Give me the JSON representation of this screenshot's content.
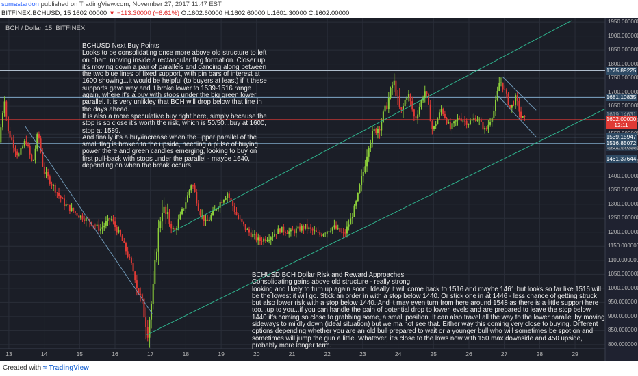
{
  "header": {
    "author": "sumastardon",
    "published_text": "published on TradingView.com, November 27, 2017 11:47 EST",
    "symbol": "BITFINEX:BCHUSD, 15",
    "last": "1602.00000",
    "change": "▼ −113.30000 (−6.61%)",
    "ohlc": "O:1602.60000 H:1602.60000 L:1601.30000 C:1602.00000"
  },
  "chart": {
    "symbol_label": "BCH / Dollar, 15, BITFINEX",
    "colors": {
      "background": "#1b1e27",
      "grid": "#2a2e39",
      "up_candle": "#8ccf3a",
      "down_candle": "#e03a35",
      "trendline": "#2fb48e",
      "channel_line": "#6e96b4",
      "support_line": "#7fa8c8",
      "resistance_line": "#aebdcc",
      "price_line": "#e03a35",
      "price_tag": "#e03a35",
      "level_tag": "#2e4a64"
    },
    "horizontal_levels": [
      {
        "label": "1775.89225",
        "value": 1775.9,
        "style": "resistance"
      },
      {
        "label": "1681.10835",
        "value": 1681.1,
        "style": "support"
      },
      {
        "label": "1539.15947",
        "value": 1539.2,
        "style": "support"
      },
      {
        "label": "1516.85072",
        "value": 1516.9,
        "style": "support"
      },
      {
        "label": "1461.37644",
        "value": 1461.4,
        "style": "support"
      }
    ],
    "current_price_tag": {
      "label": "1602.00000",
      "value": 1602
    },
    "countdown_tag": {
      "label": "12:11",
      "value": 1580
    },
    "partially_hidden_tags": [
      {
        "label": "1619.14631",
        "value": 1619.1
      },
      {
        "label": "1501.87655",
        "value": 1501.9
      }
    ]
  },
  "annotations": {
    "note1": "BCHUSD  Next Buy Points\nLooks to be consolidating once more above old structure to left on chart, moving inside a rectangular flag formation. Closer up, it's moving down a pair of parallels and dancing along between the two blue lines of fixed support, with pin bars of interest at 1600 showing...it would be helpful (to buyers at least) if it these supports gave way and it broke lower to 1539-1516 range again, where it's a buy with stops under the big green lower parallel. It is very unlikley that BCH will drop below that line in the days ahead.\nIt is also a more speculative buy right here, simply because the stop is so close it's worth the risk, which is 50/50...buy at 1600, stop at 1589.\nAnd finally it's a buy/increase when the upper parallel of the small flag is broken to the upside, needing a pulse of buying power there and green candles emerging, looking to buy on first pull-back with stops under the parallel - maybe 1640, depending on when the break occurs.",
    "note2": "BCHUSD   BCH Dollar Risk and Reward Approaches\nConsolidating gains above old structure - really strong\nlooking and likely to turn up again soon. Ideally it will come back to 1516 and maybe 1461 but looks so far like 1516 will be the lowest it will go. Stick an order in with a stop below 1440. Or stick one in at 1446 - less chance of getting struck but also lower risk with a stop below 1440. And it may even turn from here around 1548 as there is a little support here too...up to you...if you can handle the pain of potential drop to lower levels and are prepared to leave the stop below 1440 it's coming so close to grabbing some, a small position. It can also travel all the way  to the lower parallel by moving sideways to mildly down (ideal situation) but we ma not see that. Either way this coming very close to buying. Different options depending whether you are an old bull prepared to wait or a younger bull who will sometimes be spot on and sometimes will jump the gun  a little. Whatever, it's close to the lows now with 150 max downside and 450 upside, probably more longer term."
  },
  "chart_data": {
    "type": "candlestick",
    "title": "BCH / Dollar, 15, BITFINEX",
    "xlabel": "",
    "ylabel": "",
    "x_ticks": [
      "13",
      "14",
      "15",
      "16",
      "17",
      "18",
      "19",
      "20",
      "21",
      "22",
      "23",
      "24",
      "25",
      "26",
      "27",
      "28",
      "29"
    ],
    "y_ticks": [
      800,
      850,
      900,
      950,
      1000,
      1050,
      1100,
      1150,
      1200,
      1250,
      1300,
      1350,
      1400,
      1450,
      1500,
      1550,
      1600,
      1650,
      1700,
      1750,
      1800,
      1850,
      1900,
      1950
    ],
    "ylim": [
      790,
      1960
    ],
    "xlim": [
      12.75,
      29.85
    ],
    "grid": true,
    "approx_close_path": [
      {
        "x": 12.75,
        "y": 1520
      },
      {
        "x": 12.9,
        "y": 1680
      },
      {
        "x": 13.0,
        "y": 1560
      },
      {
        "x": 13.3,
        "y": 1470
      },
      {
        "x": 13.5,
        "y": 1530
      },
      {
        "x": 13.7,
        "y": 1440
      },
      {
        "x": 13.85,
        "y": 1560
      },
      {
        "x": 14.0,
        "y": 1420
      },
      {
        "x": 14.3,
        "y": 1360
      },
      {
        "x": 14.6,
        "y": 1300
      },
      {
        "x": 15.0,
        "y": 1260
      },
      {
        "x": 15.3,
        "y": 1240
      },
      {
        "x": 15.6,
        "y": 1210
      },
      {
        "x": 15.9,
        "y": 1250
      },
      {
        "x": 16.2,
        "y": 1180
      },
      {
        "x": 16.5,
        "y": 1080
      },
      {
        "x": 16.8,
        "y": 940
      },
      {
        "x": 16.95,
        "y": 850
      },
      {
        "x": 17.1,
        "y": 990
      },
      {
        "x": 17.2,
        "y": 1150
      },
      {
        "x": 17.35,
        "y": 1290
      },
      {
        "x": 17.5,
        "y": 1250
      },
      {
        "x": 17.7,
        "y": 1200
      },
      {
        "x": 18.0,
        "y": 1300
      },
      {
        "x": 18.2,
        "y": 1380
      },
      {
        "x": 18.4,
        "y": 1280
      },
      {
        "x": 18.6,
        "y": 1230
      },
      {
        "x": 18.9,
        "y": 1290
      },
      {
        "x": 19.2,
        "y": 1340
      },
      {
        "x": 19.5,
        "y": 1250
      },
      {
        "x": 19.8,
        "y": 1200
      },
      {
        "x": 20.1,
        "y": 1170
      },
      {
        "x": 20.4,
        "y": 1185
      },
      {
        "x": 20.7,
        "y": 1210
      },
      {
        "x": 21.0,
        "y": 1200
      },
      {
        "x": 21.4,
        "y": 1220
      },
      {
        "x": 21.8,
        "y": 1190
      },
      {
        "x": 22.2,
        "y": 1220
      },
      {
        "x": 22.5,
        "y": 1190
      },
      {
        "x": 22.7,
        "y": 1250
      },
      {
        "x": 22.85,
        "y": 1310
      },
      {
        "x": 23.05,
        "y": 1420
      },
      {
        "x": 23.2,
        "y": 1520
      },
      {
        "x": 23.35,
        "y": 1560
      },
      {
        "x": 23.5,
        "y": 1580
      },
      {
        "x": 23.7,
        "y": 1650
      },
      {
        "x": 23.9,
        "y": 1740
      },
      {
        "x": 24.1,
        "y": 1620
      },
      {
        "x": 24.3,
        "y": 1700
      },
      {
        "x": 24.5,
        "y": 1600
      },
      {
        "x": 24.8,
        "y": 1710
      },
      {
        "x": 25.0,
        "y": 1560
      },
      {
        "x": 25.25,
        "y": 1640
      },
      {
        "x": 25.5,
        "y": 1570
      },
      {
        "x": 25.75,
        "y": 1610
      },
      {
        "x": 26.0,
        "y": 1590
      },
      {
        "x": 26.25,
        "y": 1610
      },
      {
        "x": 26.5,
        "y": 1560
      },
      {
        "x": 26.75,
        "y": 1640
      },
      {
        "x": 26.9,
        "y": 1745
      },
      {
        "x": 27.05,
        "y": 1700
      },
      {
        "x": 27.2,
        "y": 1640
      },
      {
        "x": 27.35,
        "y": 1680
      },
      {
        "x": 27.5,
        "y": 1610
      },
      {
        "x": 27.6,
        "y": 1602
      }
    ],
    "trend_lines": [
      {
        "name": "upper parallel",
        "points": [
          {
            "x": 17.6,
            "y": 1200
          },
          {
            "x": 28.9,
            "y": 1955
          }
        ]
      },
      {
        "name": "lower parallel",
        "points": [
          {
            "x": 16.9,
            "y": 835
          },
          {
            "x": 29.85,
            "y": 1640
          }
        ]
      },
      {
        "name": "descending line",
        "points": [
          {
            "x": 13.45,
            "y": 1580
          },
          {
            "x": 17.05,
            "y": 910
          }
        ]
      },
      {
        "name": "flag upper",
        "points": [
          {
            "x": 26.95,
            "y": 1755
          },
          {
            "x": 27.9,
            "y": 1635
          }
        ]
      },
      {
        "name": "flag lower",
        "points": [
          {
            "x": 26.8,
            "y": 1690
          },
          {
            "x": 27.9,
            "y": 1540
          }
        ]
      }
    ]
  }
}
